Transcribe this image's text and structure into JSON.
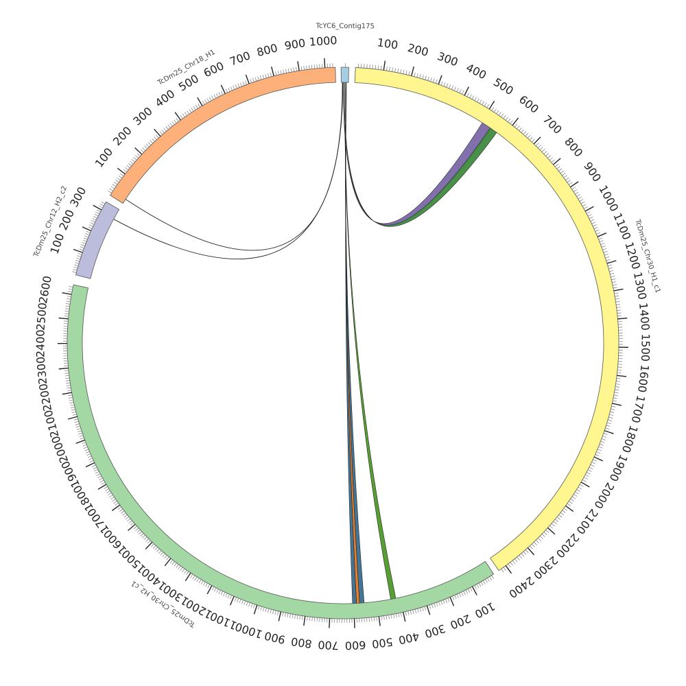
{
  "segments": [
    {
      "id": "contig",
      "label": "TcYC6_Contig175",
      "length": 18,
      "color": "#a6cee3",
      "tick_labels": []
    },
    {
      "id": "chr30h1",
      "label": "TcDm25_Chr30_H1_c1",
      "length": 2430,
      "color": "#fff68f",
      "tick_labels": [
        "100",
        "200",
        "300",
        "400",
        "500",
        "600",
        "700",
        "800",
        "900",
        "1000",
        "1100",
        "1200",
        "1300",
        "1400",
        "1500",
        "1600",
        "1700",
        "1800",
        "1900",
        "2000",
        "2100",
        "2200",
        "2300",
        "2400"
      ]
    },
    {
      "id": "chr30h2",
      "label": "TcDm25_Chr30_H2_c1",
      "length": 2640,
      "color": "#a3d7a3",
      "tick_labels": [
        "100",
        "200",
        "300",
        "400",
        "500",
        "600",
        "700",
        "800",
        "900",
        "1000",
        "1100",
        "1200",
        "1300",
        "1400",
        "1500",
        "1600",
        "1700",
        "1800",
        "1900",
        "2000",
        "2100",
        "2200",
        "2300",
        "2400",
        "2500",
        "2600"
      ]
    },
    {
      "id": "chr12",
      "label": "TcDm25_Chr12_H2_c2",
      "length": 340,
      "color": "#bcbddc",
      "tick_labels": [
        "100",
        "200",
        "300"
      ]
    },
    {
      "id": "chr18",
      "label": "TcDm25_Chr18_H1",
      "length": 1040,
      "color": "#fdb07a",
      "tick_labels": [
        "100",
        "200",
        "300",
        "400",
        "500",
        "600",
        "700",
        "800",
        "900",
        "1000"
      ]
    }
  ],
  "links": [
    {
      "from": "contig",
      "from_pos": 5,
      "to": "chr30h1",
      "to_start": 505,
      "to_end": 545,
      "color": "#7b68a8"
    },
    {
      "from": "contig",
      "from_pos": 7,
      "to": "chr30h1",
      "to_start": 540,
      "to_end": 570,
      "color": "#3f8a3f"
    },
    {
      "from": "contig",
      "from_pos": 9,
      "to": "chr30h2",
      "to_start": 418,
      "to_end": 440,
      "color": "#4e9a28"
    },
    {
      "from": "contig",
      "from_pos": 11,
      "to": "chr30h2",
      "to_start": 555,
      "to_end": 575,
      "color": "#3a6e8f"
    },
    {
      "from": "contig",
      "from_pos": 12,
      "to": "chr30h2",
      "to_start": 575,
      "to_end": 588,
      "color": "#e87722"
    },
    {
      "from": "contig",
      "from_pos": 13,
      "to": "chr30h2",
      "to_start": 588,
      "to_end": 605,
      "color": "#3a6e8f"
    },
    {
      "from": "contig",
      "from_pos": 4,
      "to": "chr12",
      "to_start": 290,
      "to_end": 290,
      "color": "none"
    },
    {
      "from": "contig",
      "from_pos": 3,
      "to": "chr18",
      "to_start": 20,
      "to_end": 20,
      "color": "none"
    }
  ]
}
